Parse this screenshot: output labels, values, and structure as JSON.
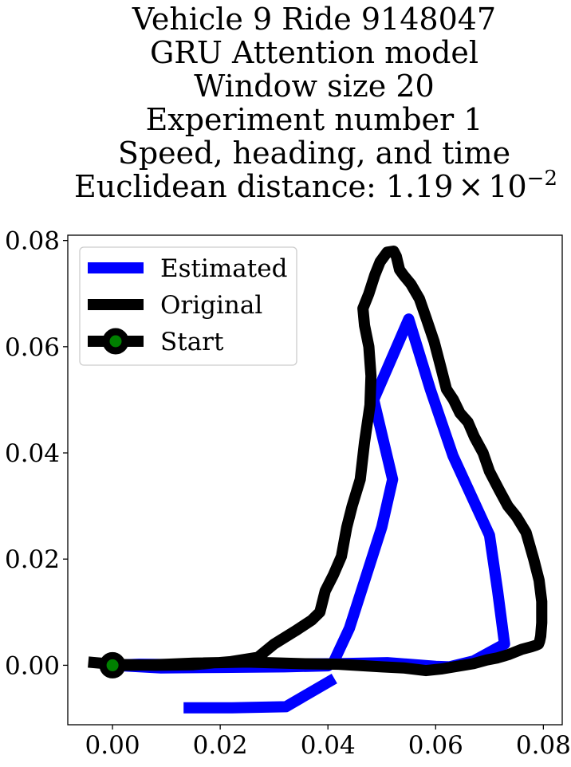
{
  "chart_data": {
    "type": "line",
    "title_lines": [
      "Vehicle 9 Ride 9148047",
      "GRU Attention model",
      "Window size 20",
      "Experiment number 1",
      "Speed, heading, and time"
    ],
    "title_metric_label": "Euclidean distance: 1.19",
    "title_metric_times": "×",
    "title_metric_base": "10",
    "title_metric_exponent": "−2",
    "xlabel": "",
    "ylabel": "",
    "xlim": [
      -0.0083,
      0.0835
    ],
    "ylim": [
      -0.0112,
      0.081
    ],
    "xticks": [
      0.0,
      0.02,
      0.04,
      0.06,
      0.08
    ],
    "xtick_labels": [
      "0.00",
      "0.02",
      "0.04",
      "0.06",
      "0.08"
    ],
    "yticks": [
      0.0,
      0.02,
      0.04,
      0.06,
      0.08
    ],
    "ytick_labels": [
      "0.00",
      "0.02",
      "0.04",
      "0.06",
      "0.08"
    ],
    "grid": false,
    "legend_position": "top-left",
    "series": [
      {
        "name": "Estimated",
        "color": "#0000ff",
        "x": [
          0.0,
          0.009,
          0.02,
          0.032,
          0.04,
          0.041,
          0.044,
          0.05,
          0.052,
          0.0485,
          0.055,
          0.059,
          0.0632,
          0.0675,
          0.07,
          0.0715,
          0.0728,
          0.067,
          0.0625,
          0.06,
          0.051,
          0.042,
          0.03,
          0.015,
          0.005,
          0.0
        ],
        "y": [
          0.0,
          -0.0005,
          -0.0004,
          -0.0003,
          -0.0001,
          0.0005,
          0.007,
          0.026,
          0.035,
          0.05,
          0.0652,
          0.052,
          0.0395,
          0.03,
          0.0245,
          0.014,
          0.004,
          0.0008,
          -0.0003,
          -0.0002,
          0.0005,
          0.0003,
          0.0002,
          0.0001,
          0.0002,
          0.0
        ],
        "x_tail": [
          0.0412,
          0.0322,
          0.0222,
          0.0132
        ],
        "y_tail": [
          -0.0025,
          -0.0078,
          -0.008,
          -0.008
        ]
      },
      {
        "name": "Original",
        "color": "#000000",
        "x": [
          -0.0045,
          0.0,
          0.003,
          0.008,
          0.015,
          0.022,
          0.027,
          0.03,
          0.034,
          0.037,
          0.0385,
          0.0395,
          0.041,
          0.0425,
          0.0435,
          0.0445,
          0.046,
          0.0468,
          0.0478,
          0.048,
          0.0476,
          0.0468,
          0.0465,
          0.0476,
          0.0487,
          0.0497,
          0.051,
          0.0522,
          0.0527,
          0.0533,
          0.054,
          0.0554,
          0.057,
          0.0582,
          0.0597,
          0.061,
          0.062,
          0.0633,
          0.0645,
          0.066,
          0.0672,
          0.0688,
          0.07,
          0.0718,
          0.0734,
          0.075,
          0.0768,
          0.0782,
          0.0792,
          0.0797,
          0.0797,
          0.0795,
          0.0793,
          0.0791,
          0.0787,
          0.0778,
          0.076,
          0.0735,
          0.0715,
          0.0695,
          0.067,
          0.064,
          0.061,
          0.0582,
          0.054,
          0.05,
          0.042,
          0.035,
          0.025,
          0.015,
          0.008,
          0.003,
          0.0
        ],
        "y": [
          0.0006,
          0.0002,
          0.0001,
          0.0,
          0.0001,
          0.0007,
          0.0015,
          0.004,
          0.0065,
          0.0085,
          0.01,
          0.014,
          0.017,
          0.0205,
          0.026,
          0.03,
          0.035,
          0.042,
          0.049,
          0.0545,
          0.06,
          0.064,
          0.0672,
          0.07,
          0.0735,
          0.076,
          0.0778,
          0.078,
          0.077,
          0.0745,
          0.0735,
          0.0718,
          0.069,
          0.0655,
          0.061,
          0.056,
          0.052,
          0.05,
          0.0475,
          0.0458,
          0.043,
          0.04,
          0.0365,
          0.033,
          0.03,
          0.028,
          0.025,
          0.02,
          0.016,
          0.012,
          0.008,
          0.0055,
          0.0045,
          0.004,
          0.0038,
          0.0035,
          0.003,
          0.002,
          0.0014,
          0.001,
          0.0003,
          -0.0002,
          -0.0007,
          -0.001,
          -0.0005,
          -0.0003,
          0.0002,
          0.0003,
          0.0006,
          0.0004,
          0.0001,
          0.0,
          0.0
        ]
      },
      {
        "name": "Start",
        "color": "#000000",
        "marker_color": "#008000",
        "x": [
          0.0
        ],
        "y": [
          0.0
        ]
      }
    ]
  }
}
